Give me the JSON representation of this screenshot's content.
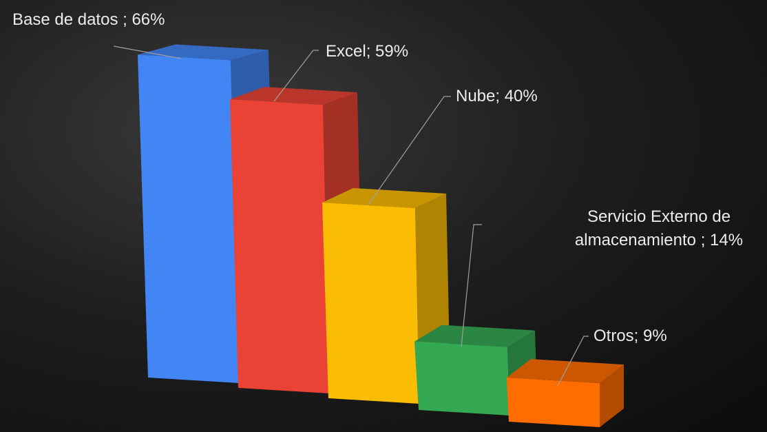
{
  "chart_data": {
    "type": "bar",
    "values": [
      66,
      59,
      40,
      14,
      9
    ],
    "value_labels": [
      "Base de datos ; 66%",
      "Excel; 59%",
      "Nube; 40%",
      "Servicio Externo de almacenamiento ; 14%",
      "Otros; 9%"
    ],
    "colors": [
      "#4285f4",
      "#ea4335",
      "#fbbc04",
      "#34a853",
      "#ff6d01"
    ]
  }
}
